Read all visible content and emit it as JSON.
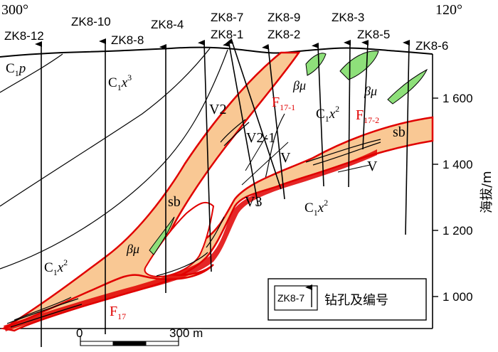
{
  "orientation": {
    "left": "300°",
    "right": "120°"
  },
  "boreholes": [
    {
      "id": "ZK8-12"
    },
    {
      "id": "ZK8-10"
    },
    {
      "id": "ZK8-8"
    },
    {
      "id": "ZK8-4"
    },
    {
      "id": "ZK8-7"
    },
    {
      "id": "ZK8-1"
    },
    {
      "id": "ZK8-9"
    },
    {
      "id": "ZK8-2"
    },
    {
      "id": "ZK8-3"
    },
    {
      "id": "ZK8-5"
    },
    {
      "id": "ZK8-6"
    }
  ],
  "units": {
    "c1p": {
      "base": "C",
      "sub": "1",
      "rest": "p"
    },
    "c1x3": {
      "base": "C",
      "sub": "1",
      "rest": "x",
      "sup": "3"
    },
    "c1x2_right": {
      "base": "C",
      "sub": "1",
      "rest": "x",
      "sup": "2"
    },
    "c1x2_mid": {
      "base": "C",
      "sub": "1",
      "rest": "x",
      "sup": "2"
    },
    "c1x2_left": {
      "base": "C",
      "sub": "1",
      "rest": "x",
      "sup": "2"
    }
  },
  "dykes": {
    "label": "βμ"
  },
  "breccia": {
    "label": "sb"
  },
  "faults": {
    "f17": {
      "base": "F",
      "sub": "17"
    },
    "f17_1": {
      "base": "F",
      "sub": "17-1"
    },
    "f17_2": {
      "base": "F",
      "sub": "17-2"
    }
  },
  "orebodies": {
    "v2": "V2",
    "v2_1": "V2-1",
    "v": "V",
    "v_right": "V",
    "v3": "V3"
  },
  "elevation_axis": {
    "title": "海拔/m",
    "ticks": [
      {
        "label": "1 600",
        "value": 1600
      },
      {
        "label": "1 400",
        "value": 1400
      },
      {
        "label": "1 200",
        "value": 1200
      },
      {
        "label": "1 000",
        "value": 1000
      }
    ]
  },
  "scale_bar": {
    "start": "0",
    "end": "300 m"
  },
  "legend": {
    "symbol_label": "ZK8-7",
    "text": "钻孔及编号"
  },
  "colors": {
    "breccia_fill": "#f9c894",
    "fault_red": "#e00000",
    "dyke_green": "#8ee07a"
  }
}
